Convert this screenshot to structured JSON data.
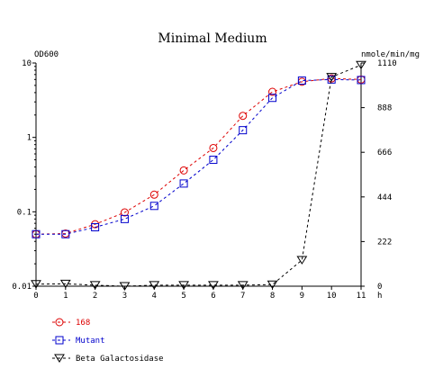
{
  "chart_data": {
    "type": "line",
    "title": "Minimal Medium",
    "left_axis": {
      "label": "OD600",
      "scale": "log",
      "range": [
        0.01,
        10
      ],
      "ticks": [
        "10",
        "1",
        "0.1",
        "0.01"
      ]
    },
    "right_axis": {
      "label": "nmole/min/mg",
      "scale": "linear",
      "range": [
        0,
        1110
      ],
      "ticks": [
        "1110",
        "888",
        "666",
        "444",
        "222",
        "0"
      ]
    },
    "x_axis": {
      "unit": "h",
      "range": [
        0,
        11
      ],
      "ticks": [
        "0",
        "1",
        "2",
        "3",
        "4",
        "5",
        "6",
        "7",
        "8",
        "9",
        "10",
        "11"
      ]
    },
    "x": [
      0,
      1,
      2,
      3,
      4,
      5,
      6,
      7,
      8,
      9,
      10,
      11
    ],
    "grid": false,
    "legend_position": "bottom-left",
    "series": [
      {
        "name": "168",
        "axis": "left",
        "marker": "circle",
        "line": "dashed",
        "color": "#dd0000",
        "values": [
          0.05,
          0.051,
          0.068,
          0.098,
          0.17,
          0.36,
          0.72,
          1.95,
          4.1,
          5.6,
          6.2,
          6.0
        ]
      },
      {
        "name": "Mutant",
        "axis": "left",
        "marker": "square",
        "line": "dashed",
        "color": "#0000cc",
        "values": [
          0.05,
          0.05,
          0.062,
          0.08,
          0.12,
          0.24,
          0.5,
          1.25,
          3.4,
          5.8,
          6.0,
          5.9
        ]
      },
      {
        "name": "Beta Galactosidase",
        "axis": "right",
        "marker": "triangle-down",
        "line": "dashed",
        "color": "#000000",
        "values": [
          10,
          12,
          5,
          0,
          5,
          5,
          5,
          5,
          8,
          130,
          1040,
          1100
        ]
      }
    ]
  }
}
